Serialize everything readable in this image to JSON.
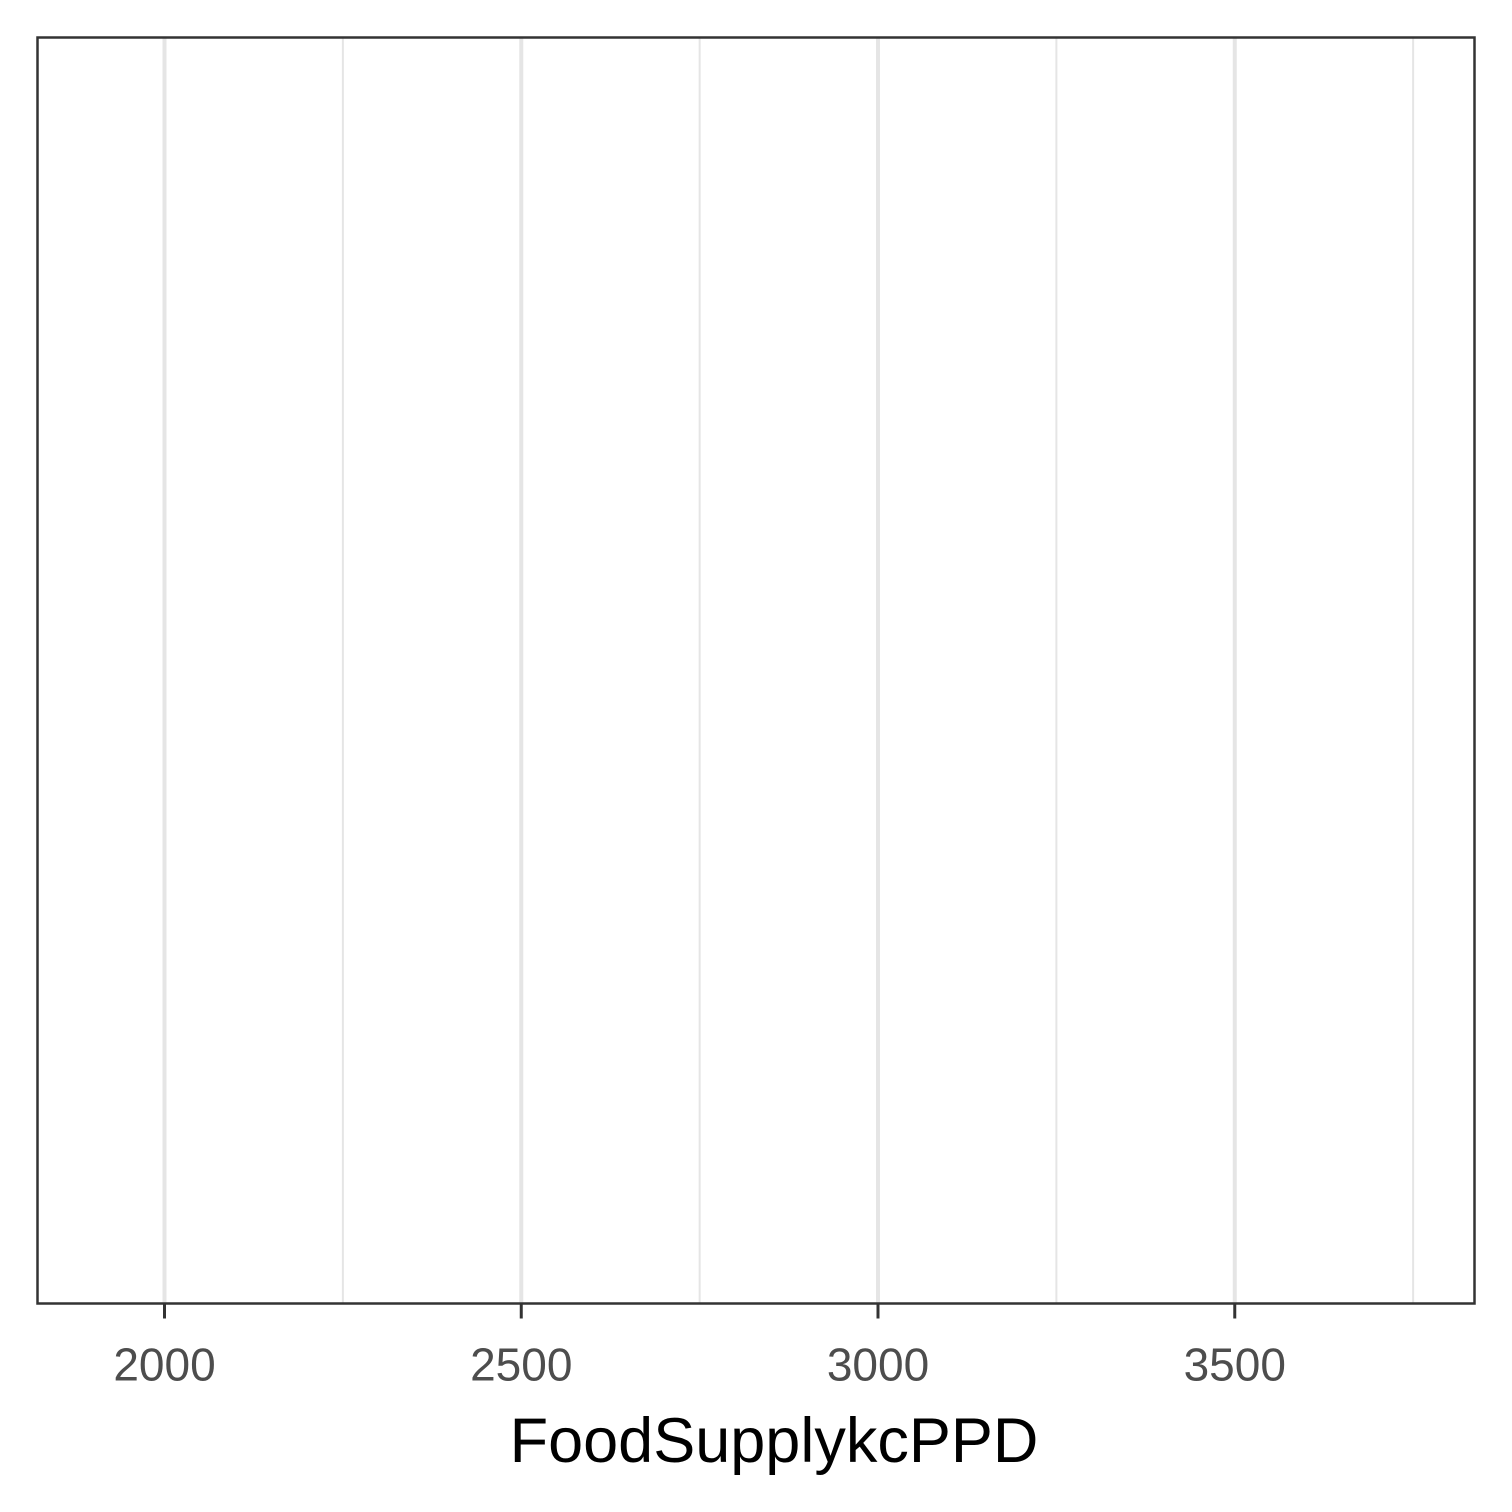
{
  "chart_data": {
    "type": "scatter",
    "title": "",
    "xlabel": "FoodSupplykcPPD",
    "ylabel": "",
    "xlim": [
      1822,
      3836
    ],
    "x_ticks": [
      2000,
      2500,
      3000,
      3500
    ],
    "x_tick_labels": [
      "2000",
      "2500",
      "3000",
      "3500"
    ],
    "x_minor_gridlines": [
      2250,
      2750,
      3250,
      3750
    ],
    "y_ticks": [],
    "grid": {
      "major_x": true,
      "minor_x": true,
      "y": false
    },
    "series": [],
    "colors": {
      "panel_border": "#333333",
      "gridline": "#e5e5e5",
      "tick_mark": "#333333",
      "tick_label": "#4d4d4d",
      "axis_title": "#000000",
      "background": "#ffffff"
    }
  }
}
